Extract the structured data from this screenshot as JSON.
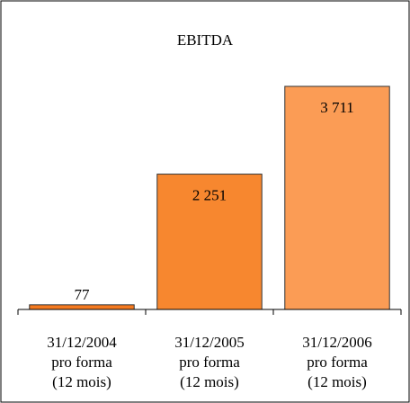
{
  "chart_data": {
    "type": "bar",
    "title": "EBITDA",
    "categories": [
      "31/12/2004\npro forma\n(12 mois)",
      "31/12/2005\npro forma\n(12 mois)",
      "31/12/2006\npro forma\n(12 mois)"
    ],
    "values": [
      77,
      2251,
      3711
    ],
    "value_labels": [
      "77",
      "2 251",
      "3 711"
    ],
    "colors": [
      "#f47a20",
      "#f7872f",
      "#fb9c55"
    ]
  }
}
